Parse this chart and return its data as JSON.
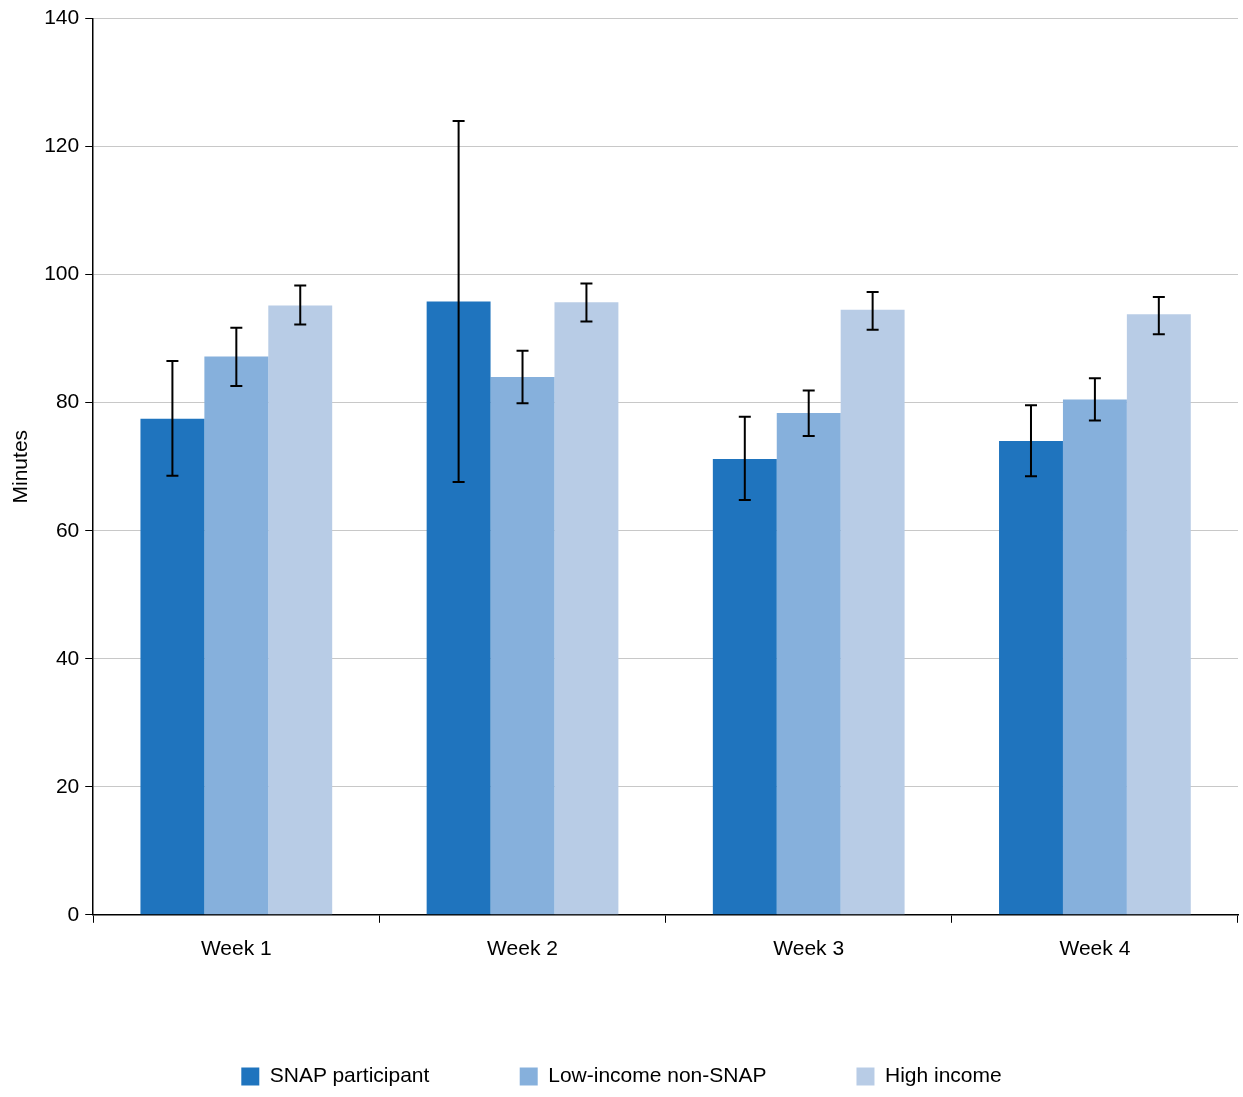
{
  "chart_data": {
    "type": "bar",
    "ylabel": "Minutes",
    "categories": [
      "Week 1",
      "Week 2",
      "Week 3",
      "Week 4"
    ],
    "series": [
      {
        "name": "SNAP participant",
        "color": "#1f74be",
        "values": [
          77.5,
          95.8,
          71.2,
          74.0
        ],
        "errors": [
          [
            68.6,
            86.5
          ],
          [
            67.6,
            124.0
          ],
          [
            64.8,
            77.8
          ],
          [
            68.5,
            79.6
          ]
        ]
      },
      {
        "name": "Low-income non-SNAP",
        "color": "#86b0dc",
        "values": [
          87.2,
          84.0,
          78.4,
          80.5
        ],
        "errors": [
          [
            82.6,
            91.7
          ],
          [
            79.9,
            88.1
          ],
          [
            74.8,
            81.9
          ],
          [
            77.2,
            83.8
          ]
        ]
      },
      {
        "name": "High income",
        "color": "#b8cce6",
        "values": [
          95.2,
          95.7,
          94.5,
          93.8
        ],
        "errors": [
          [
            92.2,
            98.3
          ],
          [
            92.7,
            98.6
          ],
          [
            91.4,
            97.3
          ],
          [
            90.7,
            96.5
          ]
        ]
      }
    ],
    "ylim": [
      0,
      140
    ],
    "yticks": [
      0,
      20,
      40,
      60,
      80,
      100,
      120,
      140
    ],
    "grid": "y",
    "legend": "bottom"
  }
}
